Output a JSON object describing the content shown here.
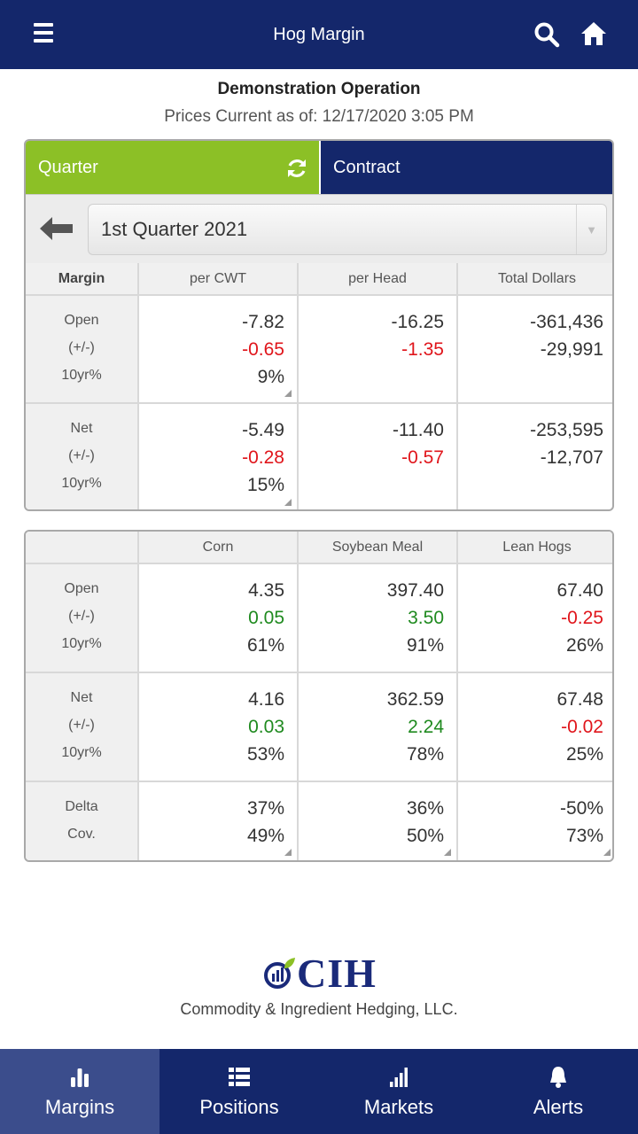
{
  "header": {
    "title": "Hog Margin"
  },
  "operation": {
    "name": "Demonstration Operation",
    "prices_line": "Prices Current as of: 12/17/2020 3:05 PM"
  },
  "tabs": {
    "quarter": "Quarter",
    "contract": "Contract"
  },
  "selector": {
    "value": "1st Quarter 2021"
  },
  "margin_table": {
    "headers": [
      "Margin",
      "per CWT",
      "per Head",
      "Total Dollars"
    ],
    "rows": [
      {
        "labels": [
          "Open",
          "(+/-)",
          "10yr%"
        ],
        "cwt": [
          "-7.82",
          "-0.65",
          "9%"
        ],
        "head": [
          "-16.25",
          "-1.35"
        ],
        "total": [
          "-361,436",
          "-29,991"
        ]
      },
      {
        "labels": [
          "Net",
          "(+/-)",
          "10yr%"
        ],
        "cwt": [
          "-5.49",
          "-0.28",
          "15%"
        ],
        "head": [
          "-11.40",
          "-0.57"
        ],
        "total": [
          "-253,595",
          "-12,707"
        ]
      }
    ]
  },
  "commodity_table": {
    "headers": [
      "",
      "Corn",
      "Soybean Meal",
      "Lean Hogs"
    ],
    "rows": [
      {
        "labels": [
          "Open",
          "(+/-)",
          "10yr%"
        ],
        "corn": [
          "4.35",
          "0.05",
          "61%"
        ],
        "sbm": [
          "397.40",
          "3.50",
          "91%"
        ],
        "hogs": [
          "67.40",
          "-0.25",
          "26%"
        ]
      },
      {
        "labels": [
          "Net",
          "(+/-)",
          "10yr%"
        ],
        "corn": [
          "4.16",
          "0.03",
          "53%"
        ],
        "sbm": [
          "362.59",
          "2.24",
          "78%"
        ],
        "hogs": [
          "67.48",
          "-0.02",
          "25%"
        ]
      },
      {
        "labels": [
          "Delta",
          "Cov."
        ],
        "corn": [
          "37%",
          "49%"
        ],
        "sbm": [
          "36%",
          "50%"
        ],
        "hogs": [
          "-50%",
          "73%"
        ]
      }
    ]
  },
  "logo": {
    "text": "CIH",
    "subtitle": "Commodity & Ingredient Hedging, LLC."
  },
  "nav": {
    "margins": "Margins",
    "positions": "Positions",
    "markets": "Markets",
    "alerts": "Alerts"
  },
  "colors": {
    "navy": "#14276b",
    "green": "#8cc026",
    "negative": "#e0151b",
    "positive": "#1f8a1f"
  }
}
